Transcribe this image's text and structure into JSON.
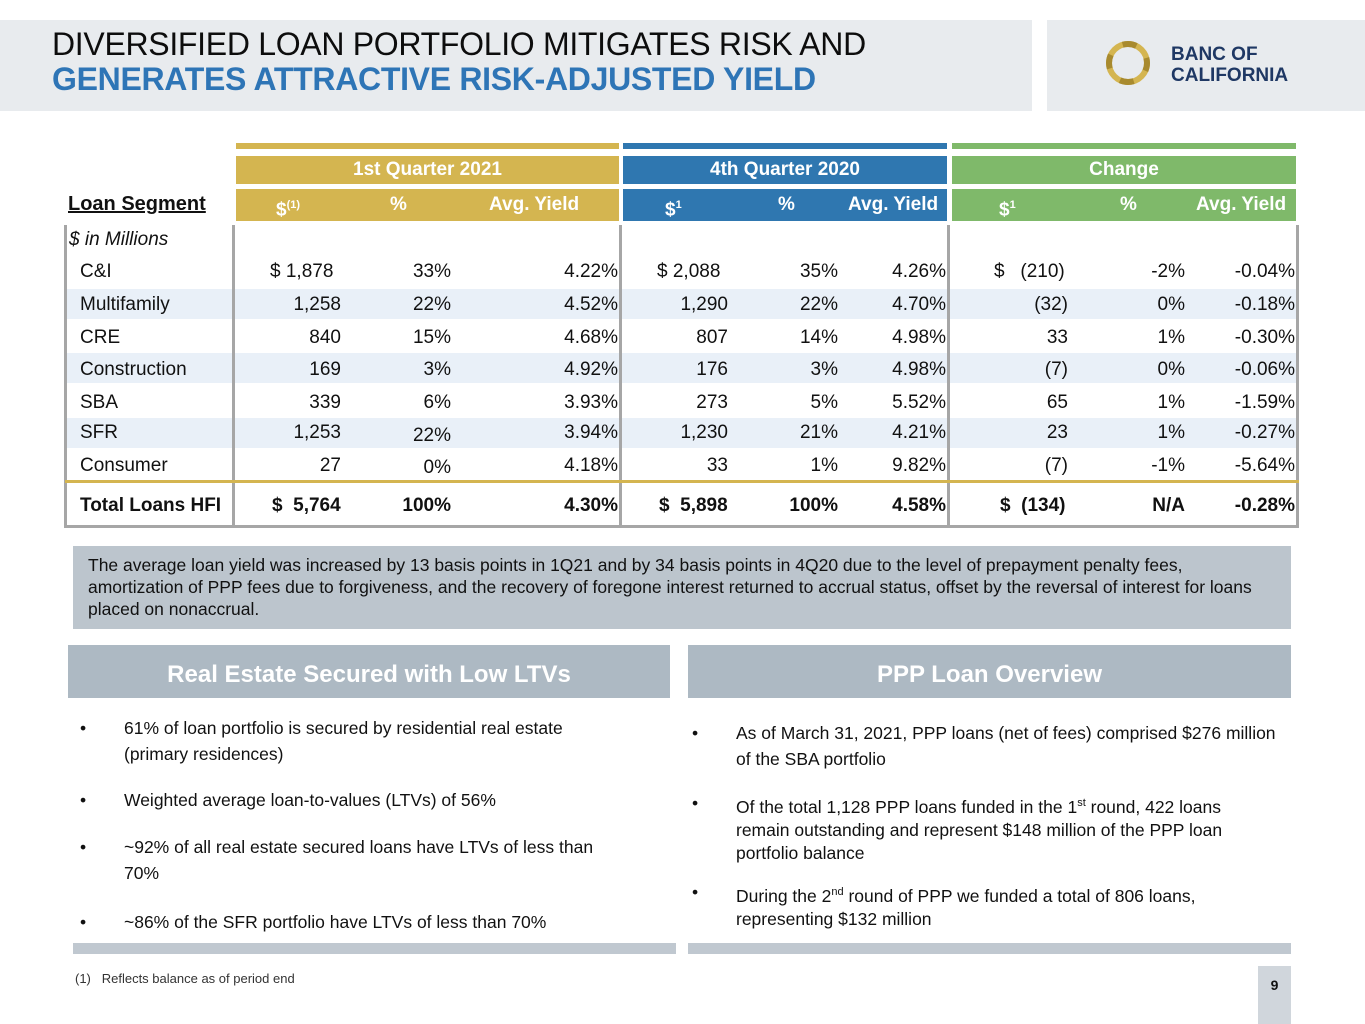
{
  "header": {
    "title_line1": "DIVERSIFIED LOAN PORTFOLIO MITIGATES RISK AND",
    "title_line2": "GENERATES ATTRACTIVE RISK-ADJUSTED YIELD",
    "logo_line1": "BANC OF",
    "logo_line2": "CALIFORNIA"
  },
  "table": {
    "segment_title": "Loan Segment",
    "units": "$ in Millions",
    "groups": [
      "1st Quarter 2021",
      "4th Quarter 2020",
      "Change"
    ],
    "col_dollar_q1": "$",
    "col_dollar_q1_sup": "(1)",
    "col_dollar": "$",
    "col_dollar_sup": "1",
    "col_pct": "%",
    "col_yield": "Avg. Yield",
    "rows": [
      {
        "label": "C&I",
        "q1_amt": "$  1,878",
        "q1_pct": "33%",
        "q1_yield": "4.22%",
        "q4_amt": "$  2,088",
        "q4_pct": "35%",
        "q4_yield": "4.26%",
        "ch_amt": "$   (210)",
        "ch_pct": "-2%",
        "ch_yield": "-0.04%"
      },
      {
        "label": "Multifamily",
        "q1_amt": "1,258",
        "q1_pct": "22%",
        "q1_yield": "4.52%",
        "q4_amt": "1,290",
        "q4_pct": "22%",
        "q4_yield": "4.70%",
        "ch_amt": "(32)",
        "ch_pct": "0%",
        "ch_yield": "-0.18%"
      },
      {
        "label": "CRE",
        "q1_amt": "840",
        "q1_pct": "15%",
        "q1_yield": "4.68%",
        "q4_amt": "807",
        "q4_pct": "14%",
        "q4_yield": "4.98%",
        "ch_amt": "33",
        "ch_pct": "1%",
        "ch_yield": "-0.30%"
      },
      {
        "label": "Construction",
        "q1_amt": "169",
        "q1_pct": "3%",
        "q1_yield": "4.92%",
        "q4_amt": "176",
        "q4_pct": "3%",
        "q4_yield": "4.98%",
        "ch_amt": "(7)",
        "ch_pct": "0%",
        "ch_yield": "-0.06%"
      },
      {
        "label": "SBA",
        "q1_amt": "339",
        "q1_pct": "6%",
        "q1_yield": "3.93%",
        "q4_amt": "273",
        "q4_pct": "5%",
        "q4_yield": "5.52%",
        "ch_amt": "65",
        "ch_pct": "1%",
        "ch_yield": "-1.59%"
      },
      {
        "label": "SFR",
        "q1_amt": "1,253",
        "q1_pct": "22%",
        "q1_yield": "3.94%",
        "q4_amt": "1,230",
        "q4_pct": "21%",
        "q4_yield": "4.21%",
        "ch_amt": "23",
        "ch_pct": "1%",
        "ch_yield": "-0.27%"
      },
      {
        "label": "Consumer",
        "q1_amt": "27",
        "q1_pct": "0%",
        "q1_yield": "4.18%",
        "q4_amt": "33",
        "q4_pct": "1%",
        "q4_yield": "9.82%",
        "ch_amt": "(7)",
        "ch_pct": "-1%",
        "ch_yield": "-5.64%"
      }
    ],
    "total": {
      "label": "Total Loans HFI",
      "q1_amt": "$  5,764",
      "q1_pct": "100%",
      "q1_yield": "4.30%",
      "q4_amt": "$  5,898",
      "q4_pct": "100%",
      "q4_yield": "4.58%",
      "ch_amt": "$  (134)",
      "ch_pct": "N/A",
      "ch_yield": "-0.28%"
    }
  },
  "note": "The average loan yield was increased by 13 basis points in 1Q21 and by 34 basis points in 4Q20 due to the level of prepayment penalty fees, amortization of PPP fees due to forgiveness, and the recovery of foregone interest returned to accrual status, offset by the reversal of interest for loans placed on nonaccrual.",
  "left_panel": {
    "title": "Real Estate Secured with Low LTVs",
    "bullet_char": "•",
    "b1": "61% of loan portfolio is secured by residential real estate (primary residences)",
    "b2": "Weighted average loan-to-values (LTVs) of 56%",
    "b3": "~92% of all real estate secured loans have LTVs of less than 70%",
    "b4": "~86% of the SFR portfolio have LTVs of less than 70%"
  },
  "right_panel": {
    "title": "PPP Loan Overview",
    "b1": "As of March 31, 2021, PPP loans (net of fees) comprised $276 million of the SBA portfolio",
    "b2_pre": "Of the total 1,128 PPP loans funded in the 1",
    "b2_sup": "st",
    "b2_post": " round, 422 loans remain outstanding and represent $148 million of the PPP loan portfolio balance",
    "b3_pre": "During the 2",
    "b3_sup": "nd",
    "b3_post": " round of PPP we funded a total of 806 loans, representing $132 million"
  },
  "footnote": "(1)   Reflects balance as of period end",
  "page_number": "9",
  "colors": {
    "gold": "#d4b550",
    "blue": "#2f77b0",
    "green": "#7fb96a",
    "title_blue": "#2e75b6"
  }
}
